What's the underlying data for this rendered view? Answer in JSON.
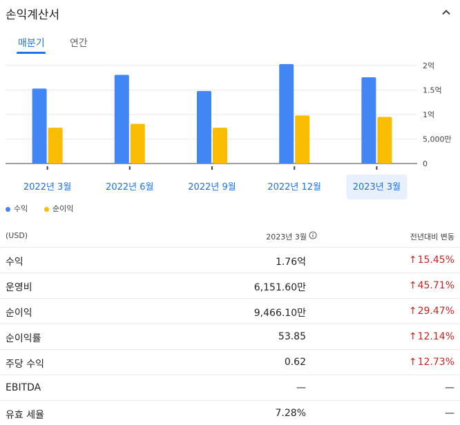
{
  "header": {
    "title": "손익계산서"
  },
  "tabs": [
    {
      "label": "매분기",
      "active": true
    },
    {
      "label": "연간",
      "active": false
    }
  ],
  "chart_data": {
    "type": "bar",
    "categories": [
      "2022년 3월",
      "2022년 6월",
      "2022년 9월",
      "2022년 12월",
      "2023년 3월"
    ],
    "selected_category": "2023년 3월",
    "series": [
      {
        "name": "수익",
        "color": "#4285f4",
        "values": [
          1.53,
          1.81,
          1.48,
          2.03,
          1.76
        ]
      },
      {
        "name": "순이익",
        "color": "#fbbc04",
        "values": [
          0.73,
          0.81,
          0.73,
          0.98,
          0.95
        ]
      }
    ],
    "y_unit": "억",
    "ylim": [
      0,
      2
    ],
    "yticks": [
      {
        "value": 2,
        "label": "2억"
      },
      {
        "value": 1.5,
        "label": "1.5억"
      },
      {
        "value": 1,
        "label": "1억"
      },
      {
        "value": 0.5,
        "label": "5,000만"
      },
      {
        "value": 0,
        "label": "0"
      }
    ],
    "grid": true,
    "legend": "bottom-left"
  },
  "table": {
    "currency": "(USD)",
    "period": "2023년 3월",
    "change_header": "전년대비 변동",
    "rows": [
      {
        "label": "수익",
        "value": "1.76억",
        "arrow": "↑",
        "change": "15.45%"
      },
      {
        "label": "운영비",
        "value": "6,151.60만",
        "arrow": "↑",
        "change": "45.71%"
      },
      {
        "label": "순이익",
        "value": "9,466.10만",
        "arrow": "↑",
        "change": "29.47%"
      },
      {
        "label": "순이익률",
        "value": "53.85",
        "arrow": "↑",
        "change": "12.14%"
      },
      {
        "label": "주당 수익",
        "value": "0.62",
        "arrow": "↑",
        "change": "12.73%"
      },
      {
        "label": "EBITDA",
        "value": "—",
        "arrow": "",
        "change": "—"
      },
      {
        "label": "유효 세율",
        "value": "7.28%",
        "arrow": "",
        "change": "—"
      }
    ]
  }
}
